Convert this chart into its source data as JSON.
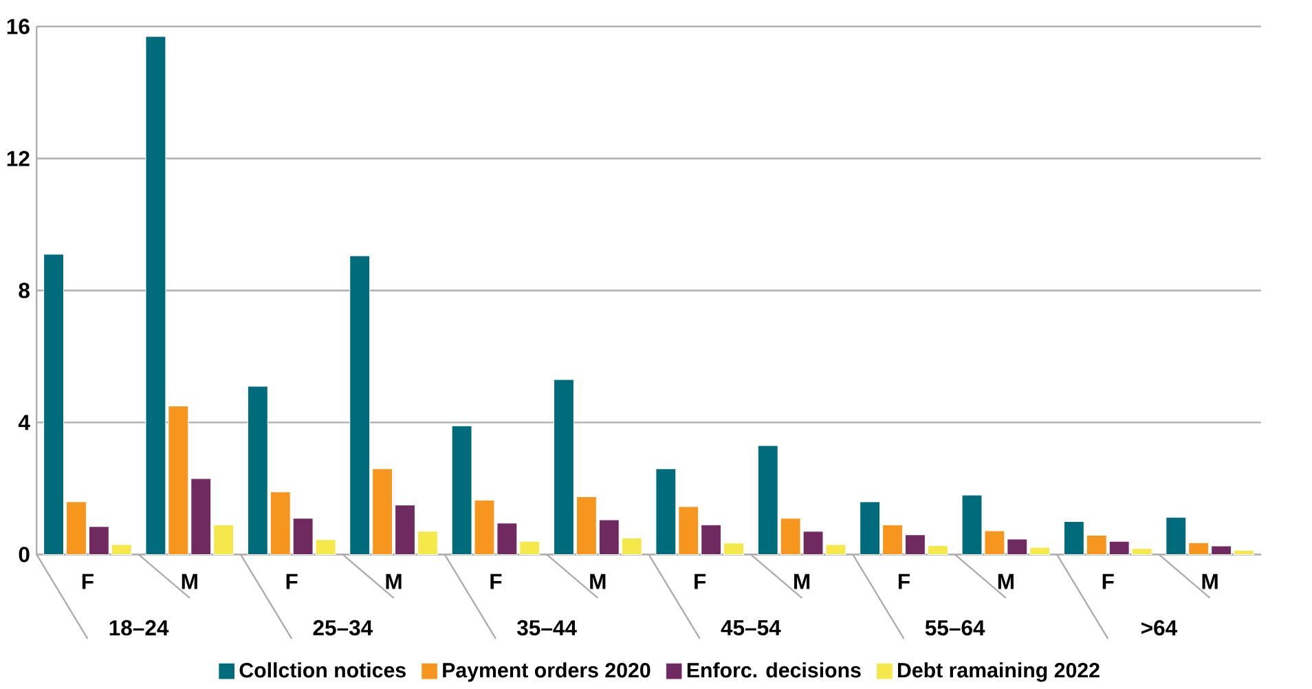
{
  "chart_data": {
    "type": "bar",
    "categories": [
      "F",
      "M",
      "F",
      "M",
      "F",
      "M",
      "F",
      "M",
      "F",
      "M",
      "F",
      "M"
    ],
    "series": [
      {
        "name": "Collction notices",
        "color": "#006b7b",
        "values": [
          9.1,
          15.7,
          5.1,
          9.05,
          3.9,
          5.3,
          2.6,
          3.3,
          1.6,
          1.8,
          1.0,
          1.13
        ]
      },
      {
        "name": "Payment orders 2020",
        "color": "#f7961e",
        "values": [
          1.6,
          4.5,
          1.9,
          2.6,
          1.65,
          1.75,
          1.45,
          1.1,
          0.9,
          0.72,
          0.58,
          0.36
        ]
      },
      {
        "name": "Enforc. decisions",
        "color": "#6f2a60",
        "values": [
          0.85,
          2.3,
          1.1,
          1.5,
          0.95,
          1.05,
          0.9,
          0.7,
          0.6,
          0.47,
          0.4,
          0.26
        ]
      },
      {
        "name": "Debt ramaining 2022",
        "color": "#f5e84a",
        "values": [
          0.3,
          0.9,
          0.45,
          0.7,
          0.4,
          0.5,
          0.35,
          0.3,
          0.27,
          0.22,
          0.18,
          0.13
        ]
      }
    ],
    "annotations": [
      "18–24",
      "25–34",
      "35–44",
      "45–54",
      "55–64",
      ">64"
    ],
    "ylim": [
      0,
      16
    ],
    "yticks": [
      0,
      4,
      8,
      12,
      16
    ],
    "grid": "y",
    "legend": "bottom"
  }
}
